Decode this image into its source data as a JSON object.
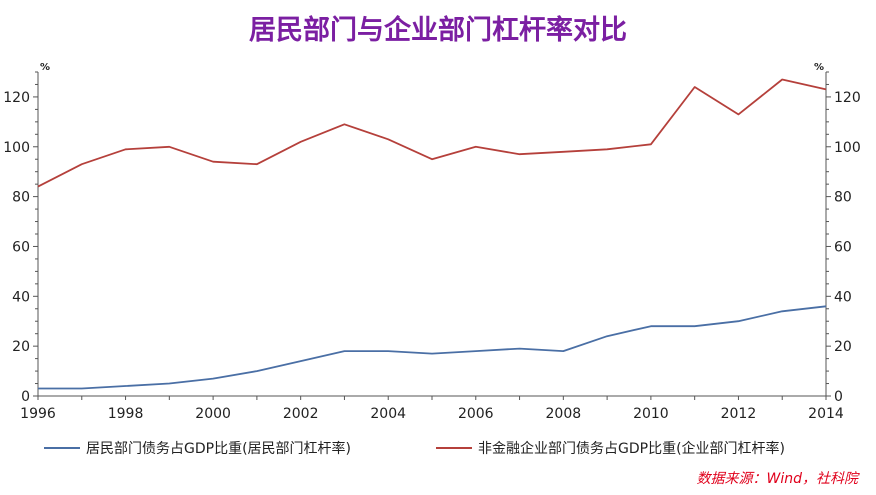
{
  "chart_data": {
    "type": "line",
    "title": "居民部门与企业部门杠杆率对比",
    "left_unit": "%",
    "right_unit": "%",
    "xlim": [
      1996,
      2014
    ],
    "ylim": [
      0,
      130
    ],
    "x_ticks": [
      "1996",
      "1998",
      "2000",
      "2002",
      "2004",
      "2006",
      "2008",
      "2010",
      "2012",
      "2014"
    ],
    "y_ticks": [
      "0",
      "20",
      "40",
      "60",
      "80",
      "100",
      "120"
    ],
    "x": [
      1996,
      1997,
      1998,
      1999,
      2000,
      2001,
      2002,
      2003,
      2004,
      2005,
      2006,
      2007,
      2008,
      2009,
      2010,
      2011,
      2012,
      2013,
      2014
    ],
    "series": [
      {
        "name": "居民部门债务占GDP比重(居民部门杠杆率)",
        "color": "#4a6fa5",
        "values": [
          3,
          3,
          4,
          5,
          7,
          10,
          14,
          18,
          18,
          17,
          18,
          19,
          18,
          24,
          28,
          28,
          30,
          34,
          36
        ]
      },
      {
        "name": "非金融企业部门债务占GDP比重(企业部门杠杆率)",
        "color": "#b5403b",
        "values": [
          84,
          93,
          99,
          100,
          94,
          93,
          102,
          109,
          103,
          95,
          100,
          97,
          98,
          99,
          101,
          124,
          113,
          127,
          123
        ]
      }
    ],
    "grid": false,
    "legend": "bottom",
    "source": "数据来源：Wind，社科院"
  }
}
